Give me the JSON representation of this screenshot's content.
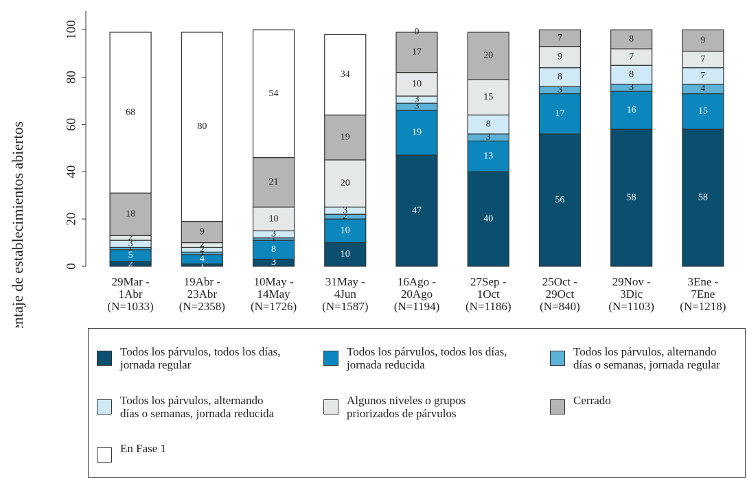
{
  "chart_data": {
    "type": "stacked_bar",
    "y_label": "Porcentaje de establecimientos abiertos",
    "categories": [
      [
        "29Mar -",
        "1Abr",
        "(N=1033)"
      ],
      [
        "19Abr -",
        "23Abr",
        "(N=2358)"
      ],
      [
        "10May -",
        "14May",
        "(N=1726)"
      ],
      [
        "31May -",
        "4Jun",
        "(N=1587)"
      ],
      [
        "16Ago -",
        "20Ago",
        "(N=1194)"
      ],
      [
        "27Sep -",
        "1Oct",
        "(N=1186)"
      ],
      [
        "25Oct -",
        "29Oct",
        "(N=840)"
      ],
      [
        "29Nov -",
        "3Dic",
        "(N=1103)"
      ],
      [
        "3Ene -",
        "7Ene",
        "(N=1218)"
      ]
    ],
    "series": [
      {
        "name": "Todos los párvulos, todos los días, jornada regular",
        "color": "#0a4f6e",
        "values": [
          2,
          1,
          3,
          10,
          47,
          40,
          56,
          58,
          58
        ]
      },
      {
        "name": "Todos los párvulos, todos los días, jornada reducida",
        "color": "#0b87bd",
        "values": [
          5,
          4,
          8,
          10,
          19,
          13,
          17,
          16,
          15
        ]
      },
      {
        "name": "Todos los párvulos, alternando días o semanas, jornada regular",
        "color": "#5bb1d6",
        "values": [
          1,
          1,
          1,
          2,
          3,
          3,
          3,
          3,
          4
        ]
      },
      {
        "name": "Todos los párvulos, alternando días o semanas, jornada reducida",
        "color": "#cfe9f6",
        "values": [
          3,
          2,
          3,
          3,
          3,
          8,
          8,
          8,
          7
        ]
      },
      {
        "name": "Algunos niveles o grupos priorizados de párvulos",
        "color": "#e5e8e8",
        "values": [
          2,
          2,
          10,
          20,
          10,
          15,
          9,
          7,
          7
        ]
      },
      {
        "name": "Cerrado",
        "color": "#b5b5b5",
        "values": [
          18,
          9,
          21,
          19,
          17,
          20,
          7,
          8,
          9
        ]
      },
      {
        "name": "En Fase 1",
        "color": "#ffffff",
        "values": [
          68,
          80,
          54,
          34,
          0,
          null,
          null,
          null,
          null
        ]
      }
    ],
    "ylim": [
      0,
      108
    ],
    "yticks": [
      0,
      20,
      40,
      60,
      80,
      100
    ]
  }
}
